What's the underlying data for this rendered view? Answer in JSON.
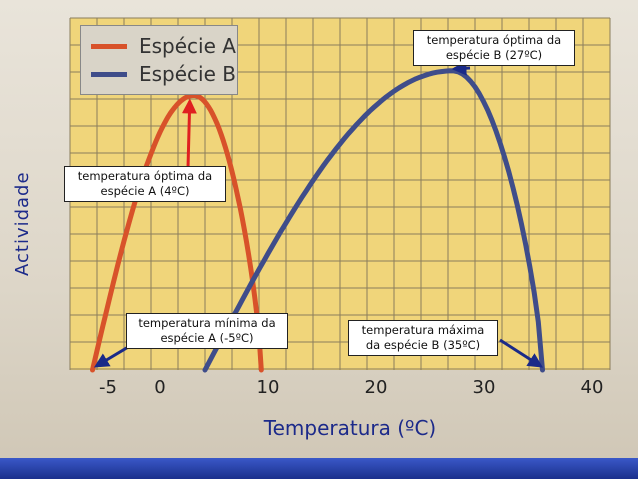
{
  "chart_data": {
    "type": "line",
    "xlabel": "Temperatura (ºC)",
    "ylabel": "Actividade",
    "xlim": [
      -7,
      41
    ],
    "ylim": [
      0,
      100
    ],
    "x_ticks": [
      "-5",
      "0",
      "10",
      "20",
      "30",
      "40"
    ],
    "x_tick_values": [
      -5,
      0,
      10,
      20,
      30,
      40
    ],
    "grid": true,
    "legend_position": "top-left",
    "series": [
      {
        "name": "Espécie A",
        "color": "#d8522a",
        "min": -5,
        "opt": 4,
        "max": 10,
        "peak": 78
      },
      {
        "name": "Espécie B",
        "color": "#3f4d8a",
        "min": 5,
        "opt": 27,
        "max": 35,
        "peak": 85
      }
    ],
    "annotations": {
      "optA": "temperatura óptima  da espécie A (4ºC)",
      "optB": "temperatura óptima  da espécie B (27ºC)",
      "minA": "temperatura mínima  da espécie A (-5ºC)",
      "maxB": "temperatura máxima  da espécie B (35ºC)"
    },
    "arrow_colors": {
      "optA": "#e02020",
      "others": "#1a2a88"
    }
  }
}
